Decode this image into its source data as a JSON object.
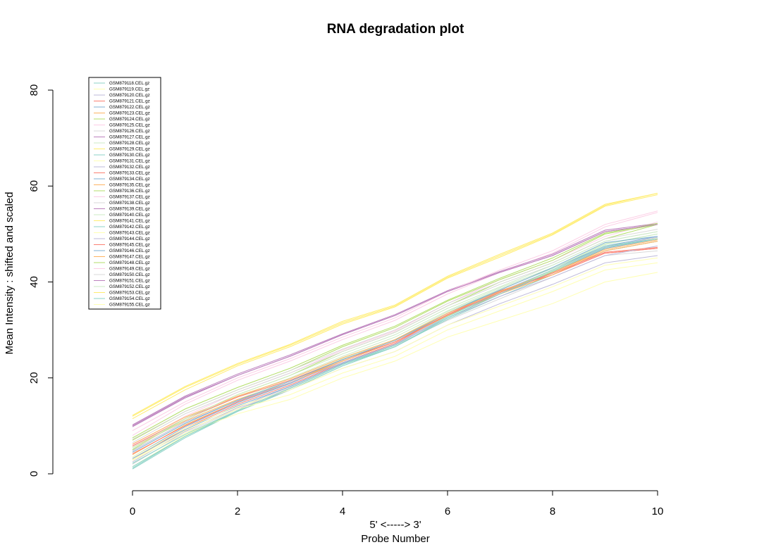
{
  "chart_data": {
    "type": "line",
    "title": "RNA degradation plot",
    "xlabel_top": "5' <-----> 3'",
    "xlabel": "Probe Number",
    "ylabel": "Mean Intensity : shifted and scaled",
    "x": [
      0,
      1,
      2,
      3,
      4,
      5,
      6,
      7,
      8,
      9,
      10
    ],
    "xlim": [
      0,
      10
    ],
    "ylim": [
      0,
      80
    ],
    "xticks": [
      0,
      2,
      4,
      6,
      8,
      10
    ],
    "yticks": [
      0,
      20,
      40,
      60,
      80
    ],
    "grid": false,
    "legend_position": "top-left",
    "series": [
      {
        "name": "GSM879118.CEL.gz",
        "color": "#8DD3C7",
        "values": [
          1.0,
          7.5,
          13.0,
          17.5,
          22.5,
          26.5,
          32.5,
          37.5,
          42.0,
          47.0,
          49.0
        ]
      },
      {
        "name": "GSM879119.CEL.gz",
        "color": "#FFFFB3",
        "values": [
          1.5,
          8.0,
          13.2,
          17.8,
          22.8,
          26.8,
          32.8,
          37.8,
          42.3,
          47.2,
          49.2
        ]
      },
      {
        "name": "GSM879120.CEL.gz",
        "color": "#BEBADA",
        "values": [
          2.5,
          8.8,
          13.8,
          18.2,
          23.0,
          27.0,
          33.0,
          38.0,
          42.5,
          47.3,
          49.3
        ]
      },
      {
        "name": "GSM879121.CEL.gz",
        "color": "#FB8072",
        "values": [
          3.0,
          9.5,
          14.5,
          18.5,
          23.2,
          27.2,
          33.2,
          38.2,
          41.5,
          46.0,
          47.0
        ]
      },
      {
        "name": "GSM879122.CEL.gz",
        "color": "#80B1D3",
        "values": [
          3.5,
          9.8,
          14.8,
          18.8,
          23.5,
          27.5,
          33.5,
          38.5,
          42.8,
          47.5,
          49.5
        ]
      },
      {
        "name": "GSM879123.CEL.gz",
        "color": "#FDB462",
        "values": [
          4.0,
          10.2,
          15.0,
          19.0,
          23.8,
          27.8,
          33.5,
          38.0,
          42.0,
          46.5,
          48.5
        ]
      },
      {
        "name": "GSM879124.CEL.gz",
        "color": "#B3DE69",
        "values": [
          5.0,
          11.5,
          16.5,
          20.5,
          25.5,
          29.5,
          35.0,
          40.0,
          44.0,
          49.0,
          52.0
        ]
      },
      {
        "name": "GSM879125.CEL.gz",
        "color": "#FCCDE5",
        "values": [
          6.0,
          12.0,
          17.0,
          21.0,
          25.8,
          29.8,
          35.5,
          40.5,
          44.5,
          49.5,
          52.5
        ]
      },
      {
        "name": "GSM879126.CEL.gz",
        "color": "#D9D9D9",
        "values": [
          2.0,
          8.5,
          13.5,
          18.0,
          22.8,
          26.8,
          32.0,
          36.5,
          41.0,
          45.5,
          46.5
        ]
      },
      {
        "name": "GSM879127.CEL.gz",
        "color": "#BC80BD",
        "values": [
          10.0,
          16.0,
          20.5,
          24.5,
          29.0,
          33.0,
          38.0,
          42.0,
          45.5,
          50.5,
          52.0
        ]
      },
      {
        "name": "GSM879128.CEL.gz",
        "color": "#CCEBC5",
        "values": [
          4.5,
          10.5,
          15.5,
          19.5,
          24.0,
          28.0,
          33.8,
          38.5,
          42.8,
          47.8,
          50.0
        ]
      },
      {
        "name": "GSM879129.CEL.gz",
        "color": "#FFED6F",
        "values": [
          12.0,
          18.0,
          22.8,
          26.8,
          31.5,
          35.0,
          41.0,
          45.5,
          50.0,
          56.0,
          58.5
        ]
      },
      {
        "name": "GSM879130.CEL.gz",
        "color": "#8DD3C7",
        "values": [
          1.2,
          7.8,
          13.0,
          17.5,
          22.5,
          26.5,
          32.2,
          37.0,
          41.5,
          46.5,
          48.5
        ]
      },
      {
        "name": "GSM879131.CEL.gz",
        "color": "#FFFFB3",
        "values": [
          2.8,
          8.5,
          12.5,
          15.5,
          20.0,
          23.5,
          28.5,
          32.0,
          35.5,
          40.0,
          42.0
        ]
      },
      {
        "name": "GSM879132.CEL.gz",
        "color": "#BEBADA",
        "values": [
          3.0,
          9.0,
          13.5,
          17.5,
          22.0,
          25.5,
          31.0,
          35.5,
          39.5,
          44.0,
          45.5
        ]
      },
      {
        "name": "GSM879133.CEL.gz",
        "color": "#FB8072",
        "values": [
          4.2,
          10.0,
          15.0,
          19.0,
          23.5,
          27.5,
          33.0,
          37.5,
          41.5,
          46.0,
          47.0
        ]
      },
      {
        "name": "GSM879134.CEL.gz",
        "color": "#80B1D3",
        "values": [
          3.2,
          9.2,
          14.2,
          18.2,
          23.0,
          27.0,
          32.5,
          37.5,
          42.0,
          47.0,
          49.0
        ]
      },
      {
        "name": "GSM879135.CEL.gz",
        "color": "#FDB462",
        "values": [
          5.5,
          11.0,
          15.5,
          19.0,
          23.5,
          27.5,
          33.0,
          37.5,
          41.5,
          46.5,
          48.5
        ]
      },
      {
        "name": "GSM879136.CEL.gz",
        "color": "#B3DE69",
        "values": [
          7.0,
          13.0,
          17.5,
          21.5,
          26.5,
          30.5,
          36.0,
          40.5,
          44.5,
          50.0,
          52.0
        ]
      },
      {
        "name": "GSM879137.CEL.gz",
        "color": "#FCCDE5",
        "values": [
          8.0,
          14.5,
          19.5,
          23.5,
          28.0,
          32.0,
          37.5,
          42.0,
          46.0,
          51.5,
          54.5
        ]
      },
      {
        "name": "GSM879138.CEL.gz",
        "color": "#D9D9D9",
        "values": [
          6.5,
          12.5,
          17.0,
          21.0,
          25.5,
          29.5,
          35.0,
          39.5,
          43.5,
          48.5,
          50.5
        ]
      },
      {
        "name": "GSM879139.CEL.gz",
        "color": "#BC80BD",
        "values": [
          10.2,
          16.2,
          20.8,
          24.8,
          29.2,
          33.2,
          38.2,
          42.2,
          45.8,
          50.8,
          52.2
        ]
      },
      {
        "name": "GSM879140.CEL.gz",
        "color": "#CCEBC5",
        "values": [
          5.2,
          11.2,
          16.0,
          20.0,
          24.5,
          28.5,
          34.0,
          38.8,
          43.0,
          48.0,
          50.0
        ]
      },
      {
        "name": "GSM879141.CEL.gz",
        "color": "#FFED6F",
        "values": [
          11.5,
          17.5,
          22.5,
          26.5,
          31.2,
          34.8,
          40.8,
          45.2,
          49.8,
          55.8,
          58.2
        ]
      },
      {
        "name": "GSM879142.CEL.gz",
        "color": "#8DD3C7",
        "values": [
          2.2,
          8.2,
          13.2,
          17.8,
          22.8,
          26.8,
          32.8,
          37.8,
          42.5,
          47.5,
          49.0
        ]
      },
      {
        "name": "GSM879143.CEL.gz",
        "color": "#FFFFB3",
        "values": [
          3.5,
          9.5,
          14.0,
          17.5,
          22.0,
          25.5,
          31.0,
          35.0,
          39.0,
          43.5,
          45.0
        ]
      },
      {
        "name": "GSM879144.CEL.gz",
        "color": "#BEBADA",
        "values": [
          4.8,
          10.8,
          15.2,
          19.0,
          23.2,
          27.0,
          32.5,
          37.0,
          41.0,
          45.5,
          47.5
        ]
      },
      {
        "name": "GSM879145.CEL.gz",
        "color": "#FB8072",
        "values": [
          5.8,
          11.5,
          16.0,
          19.5,
          23.8,
          27.5,
          33.2,
          37.8,
          41.8,
          46.2,
          47.2
        ]
      },
      {
        "name": "GSM879146.CEL.gz",
        "color": "#80B1D3",
        "values": [
          4.5,
          10.5,
          15.3,
          19.3,
          23.8,
          27.8,
          33.5,
          38.3,
          43.0,
          48.2,
          49.5
        ]
      },
      {
        "name": "GSM879147.CEL.gz",
        "color": "#FDB462",
        "values": [
          6.2,
          11.8,
          16.2,
          19.8,
          24.2,
          28.0,
          33.5,
          38.0,
          42.0,
          46.8,
          48.8
        ]
      },
      {
        "name": "GSM879148.CEL.gz",
        "color": "#B3DE69",
        "values": [
          7.5,
          13.5,
          18.0,
          22.0,
          26.8,
          30.8,
          36.2,
          40.8,
          45.0,
          50.2,
          52.2
        ]
      },
      {
        "name": "GSM879149.CEL.gz",
        "color": "#FCCDE5",
        "values": [
          9.0,
          15.0,
          20.0,
          24.0,
          28.5,
          32.5,
          38.0,
          42.5,
          46.5,
          52.0,
          54.8
        ]
      },
      {
        "name": "GSM879150.CEL.gz",
        "color": "#D9D9D9",
        "values": [
          7.2,
          13.0,
          17.5,
          21.5,
          26.0,
          30.0,
          35.5,
          40.0,
          44.0,
          49.0,
          51.0
        ]
      },
      {
        "name": "GSM879151.CEL.gz",
        "color": "#BC80BD",
        "values": [
          9.8,
          15.8,
          20.5,
          24.5,
          29.0,
          33.0,
          38.0,
          42.0,
          45.5,
          50.5,
          52.0
        ]
      },
      {
        "name": "GSM879152.CEL.gz",
        "color": "#CCEBC5",
        "values": [
          5.5,
          11.5,
          16.5,
          20.5,
          25.0,
          29.0,
          34.5,
          39.0,
          43.5,
          48.5,
          50.5
        ]
      },
      {
        "name": "GSM879153.CEL.gz",
        "color": "#FFED6F",
        "values": [
          12.2,
          18.2,
          23.0,
          27.0,
          31.8,
          35.2,
          41.2,
          45.8,
          50.2,
          56.2,
          58.5
        ]
      },
      {
        "name": "GSM879154.CEL.gz",
        "color": "#8DD3C7",
        "values": [
          1.5,
          7.8,
          13.2,
          17.8,
          22.8,
          26.5,
          32.5,
          37.5,
          42.2,
          47.2,
          49.0
        ]
      },
      {
        "name": "GSM879155.CEL.gz",
        "color": "#FFFFB3",
        "values": [
          3.0,
          9.0,
          13.5,
          16.5,
          21.0,
          24.5,
          30.0,
          34.0,
          38.0,
          42.5,
          44.0
        ]
      }
    ]
  }
}
